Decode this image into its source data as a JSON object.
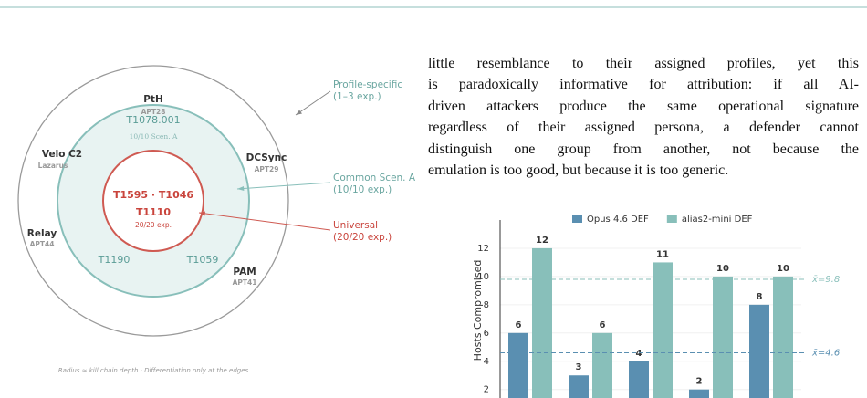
{
  "diagram": {
    "outer": [
      {
        "name": "PtH",
        "group": "APT28"
      },
      {
        "name": "Velo C2",
        "group": "Lazarus"
      },
      {
        "name": "DCSync",
        "group": "APT29"
      },
      {
        "name": "Relay",
        "group": "APT44"
      },
      {
        "name": "PAM",
        "group": "APT41"
      }
    ],
    "middle": [
      "T1078.001",
      "10/10 Scen. A",
      "T1190",
      "T1059"
    ],
    "inner": [
      "T1595 · T1046",
      "T1110",
      "20/20 exp."
    ],
    "callouts": [
      {
        "title": "Profile-specific",
        "detail": "(1–3 exp.)"
      },
      {
        "title": "Common Scen. A",
        "detail": "(10/10 exp.)"
      },
      {
        "title": "Universal",
        "detail": "(20/20 exp.)"
      }
    ],
    "caption": "Radius ≈ kill chain depth · Differentiation only at the edges"
  },
  "text": {
    "lines": [
      "little resemblance to their assigned profiles, yet this",
      "is paradoxically informative for attribution: if all AI-",
      "driven attackers produce the same operational signature",
      "regardless of their assigned persona, a defender cannot",
      "distinguish one group from another, not because the",
      "emulation is too good, but because it is too generic."
    ]
  },
  "chart_data": {
    "type": "bar",
    "y_label": "Hosts Compromised",
    "categories": [
      null,
      null,
      null,
      null,
      null
    ],
    "series": [
      {
        "name": "Opus 4.6 DEF",
        "color": "#5a8fb1",
        "values": [
          6,
          3,
          4,
          2,
          8
        ]
      },
      {
        "name": "alias2-mini DEF",
        "color": "#88bfba",
        "values": [
          12,
          6,
          11,
          10,
          10
        ]
      }
    ],
    "ylim": [
      1.4,
      14
    ],
    "yticks": [
      2,
      4,
      6,
      8,
      10,
      12
    ],
    "grid": true,
    "legend": "top",
    "reference_lines": [
      {
        "value": 9.8,
        "label": "x̄=9.8",
        "color": "#88bfba"
      },
      {
        "value": 4.6,
        "label": "x̄=4.6",
        "color": "#5a8fb1"
      }
    ]
  }
}
